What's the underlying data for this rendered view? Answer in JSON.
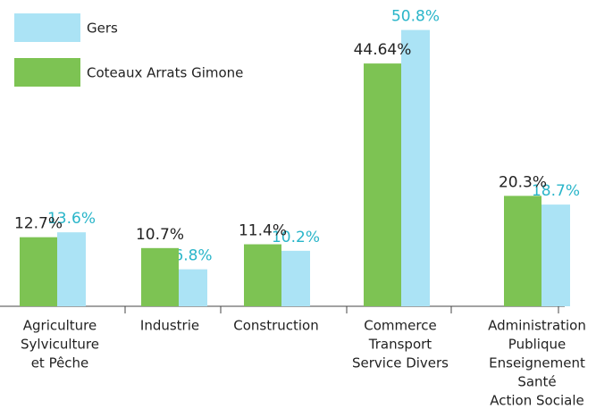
{
  "chart_data": {
    "type": "bar",
    "categories": [
      [
        "Agriculture",
        "Sylviculture",
        "et Pêche"
      ],
      [
        "Industrie"
      ],
      [
        "Construction"
      ],
      [
        "Commerce",
        "Transport",
        "Service Divers"
      ],
      [
        "Administration",
        "Publique",
        "Enseignement",
        "Santé",
        "Action Sociale"
      ]
    ],
    "series": [
      {
        "name": "Gers",
        "color": "#abe3f5",
        "label_color": "#29b5c9",
        "values": [
          13.6,
          6.8,
          10.2,
          50.8,
          18.7
        ],
        "value_labels": [
          "13.6%",
          "6.8%",
          "10.2%",
          "50.8%",
          "18.7%"
        ]
      },
      {
        "name": "Coteaux Arrats Gimone",
        "color": "#7dc353",
        "label_color": "#222222",
        "values": [
          12.7,
          10.7,
          11.4,
          44.64,
          20.3
        ],
        "value_labels": [
          "12.7%",
          "10.7%",
          "11.4%",
          "44.64%",
          "20.3%"
        ]
      }
    ],
    "ylim": [
      0,
      55
    ],
    "legend": "upper-left"
  }
}
